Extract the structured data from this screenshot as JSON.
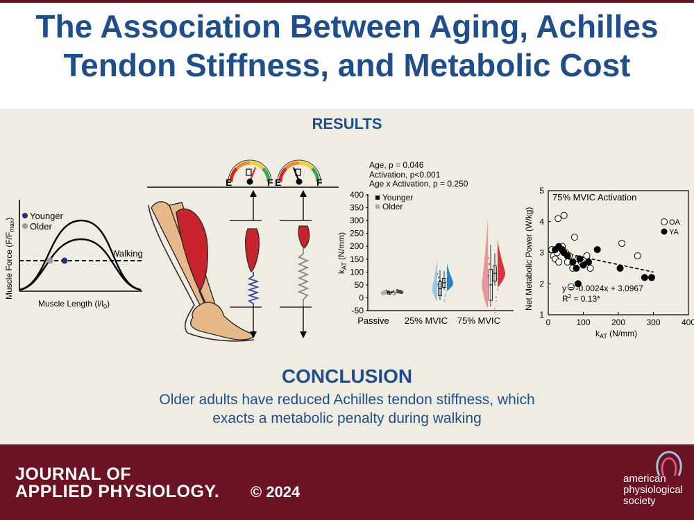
{
  "header": {
    "title_line1": "The Association Between Aging, Achilles",
    "title_line2": "Tendon Stiffness, and Metabolic Cost"
  },
  "results": {
    "heading": "RESULTS",
    "force_length": {
      "ylabel": "Muscle Force (F/F",
      "ylabel_sub": "max",
      "ylabel_end": ")",
      "xlabel": "Muscle Length (l/l",
      "xlabel_sub": "0",
      "xlabel_end": ")",
      "legend_younger": "Younger",
      "legend_older": "Older",
      "walking_label": "Walking",
      "colors": {
        "younger": "#2b2d7a",
        "older": "#9a9a9a"
      }
    },
    "gauges": [
      {
        "empty": "E",
        "full": "F",
        "level": 0.62
      },
      {
        "empty": "E",
        "full": "F",
        "level": 0.38
      }
    ],
    "stats_lines": [
      "Age, p = 0.046",
      "Activation, p<0.001",
      "Age x Activation, p = 0.250"
    ]
  },
  "chart_data": [
    {
      "type": "violin",
      "ylabel": "k",
      "ylabel_sub": "AT",
      "ylabel_end": " (N/mm)",
      "ylim": [
        -50,
        400
      ],
      "yticks": [
        -50,
        0,
        50,
        100,
        150,
        200,
        250,
        300,
        350,
        400
      ],
      "categories": [
        "Passive",
        "25% MVIC",
        "75% MVIC"
      ],
      "legend": [
        "Younger",
        "Older"
      ],
      "series": [
        {
          "name": "Younger",
          "color_25": "#1f73c0",
          "color_75": "#d61f2b",
          "color_passive": "#333333",
          "medians": [
            22,
            58,
            95
          ]
        },
        {
          "name": "Older",
          "color_25": "#8fc5ea",
          "color_75": "#ec8a93",
          "color_passive": "#aaaaaa",
          "medians": [
            18,
            35,
            50
          ]
        }
      ]
    },
    {
      "type": "scatter",
      "title": "75% MVIC Activation",
      "xlabel": "k",
      "xlabel_sub": "AT",
      "xlabel_end": " (N/mm)",
      "ylabel": "Net Metabolic Power (W/kg)",
      "xlim": [
        0,
        400
      ],
      "ylim": [
        1,
        5
      ],
      "xticks": [
        0,
        100,
        200,
        300,
        400
      ],
      "yticks": [
        1,
        2,
        3,
        4,
        5
      ],
      "legend": [
        "OA",
        "YA"
      ],
      "series": [
        {
          "name": "OA",
          "filled": false,
          "points": [
            [
              10,
              3.1
            ],
            [
              15,
              2.9
            ],
            [
              20,
              2.8
            ],
            [
              25,
              3.0
            ],
            [
              28,
              4.1
            ],
            [
              30,
              2.7
            ],
            [
              40,
              3.2
            ],
            [
              45,
              4.2
            ],
            [
              50,
              3.0
            ],
            [
              55,
              2.7
            ],
            [
              60,
              2.9
            ],
            [
              75,
              3.5
            ],
            [
              70,
              2.5
            ],
            [
              85,
              2.8
            ],
            [
              95,
              2.7
            ],
            [
              110,
              2.9
            ],
            [
              120,
              2.5
            ],
            [
              65,
              1.9
            ],
            [
              210,
              3.3
            ],
            [
              255,
              2.9
            ]
          ]
        },
        {
          "name": "YA",
          "filled": true,
          "points": [
            [
              20,
              3.1
            ],
            [
              30,
              3.2
            ],
            [
              40,
              3.1
            ],
            [
              45,
              3.0
            ],
            [
              55,
              2.9
            ],
            [
              70,
              2.7
            ],
            [
              80,
              2.5
            ],
            [
              90,
              2.8
            ],
            [
              100,
              2.6
            ],
            [
              115,
              2.7
            ],
            [
              140,
              3.1
            ],
            [
              85,
              2.0
            ],
            [
              205,
              2.5
            ],
            [
              275,
              2.2
            ],
            [
              295,
              2.2
            ]
          ]
        }
      ],
      "fit": {
        "slope": -0.0024,
        "intercept": 3.0967,
        "x_range": [
          0,
          300
        ]
      },
      "equation": "y = -0.0024x + 3.0967",
      "r2_label": "R",
      "r2_sup": "2",
      "r2_value": " = 0.13*"
    }
  ],
  "conclusion": {
    "heading": "CONCLUSION",
    "line1": "Older adults have reduced Achilles tendon stiffness, which",
    "line2": "exacts a metabolic penalty during walking"
  },
  "footer": {
    "journal_line1": "JOURNAL OF",
    "journal_line2": "APPLIED PHYSIOLOGY.",
    "copyright": "© 2024",
    "society_line1": "american",
    "society_line2": "physiological",
    "society_line3": "society"
  },
  "colors": {
    "primary": "#1f4e8c",
    "footer": "#6b1323",
    "panel": "#efece1",
    "muscle": "#c8232c",
    "bone": "#e8b988"
  }
}
